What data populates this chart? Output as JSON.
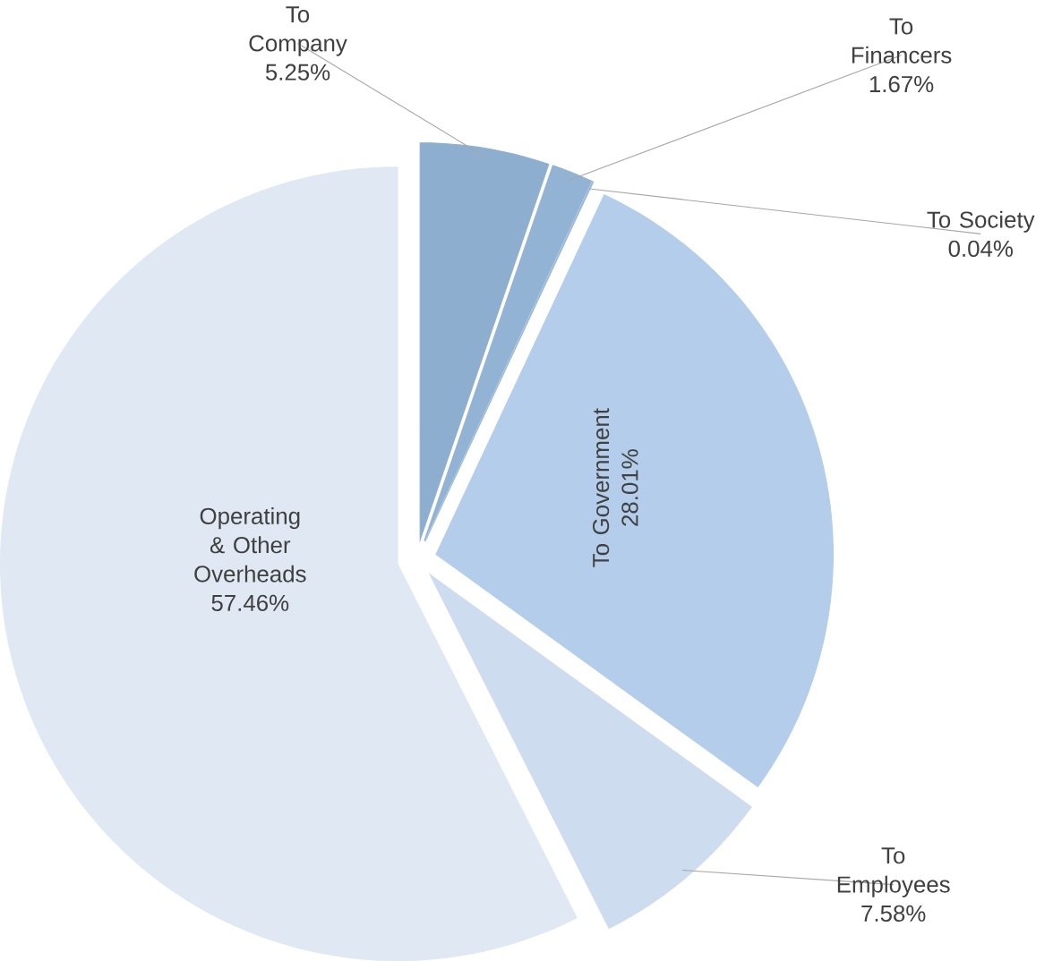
{
  "chart_data": {
    "type": "pie",
    "categories": [
      "To Company",
      "To Financers",
      "To Society",
      "To Government",
      "To Employees",
      "Operating & Other Overheads"
    ],
    "values": [
      5.25,
      1.67,
      0.04,
      28.01,
      7.58,
      57.46
    ],
    "value_labels": [
      "5.25%",
      "1.67%",
      "0.04%",
      "28.01%",
      "7.58%",
      "57.46%"
    ],
    "colors": [
      "#8eaed0",
      "#93b3d4",
      "#9bbada",
      "#b3cdea",
      "#cddcef",
      "#e0e8f4"
    ]
  }
}
